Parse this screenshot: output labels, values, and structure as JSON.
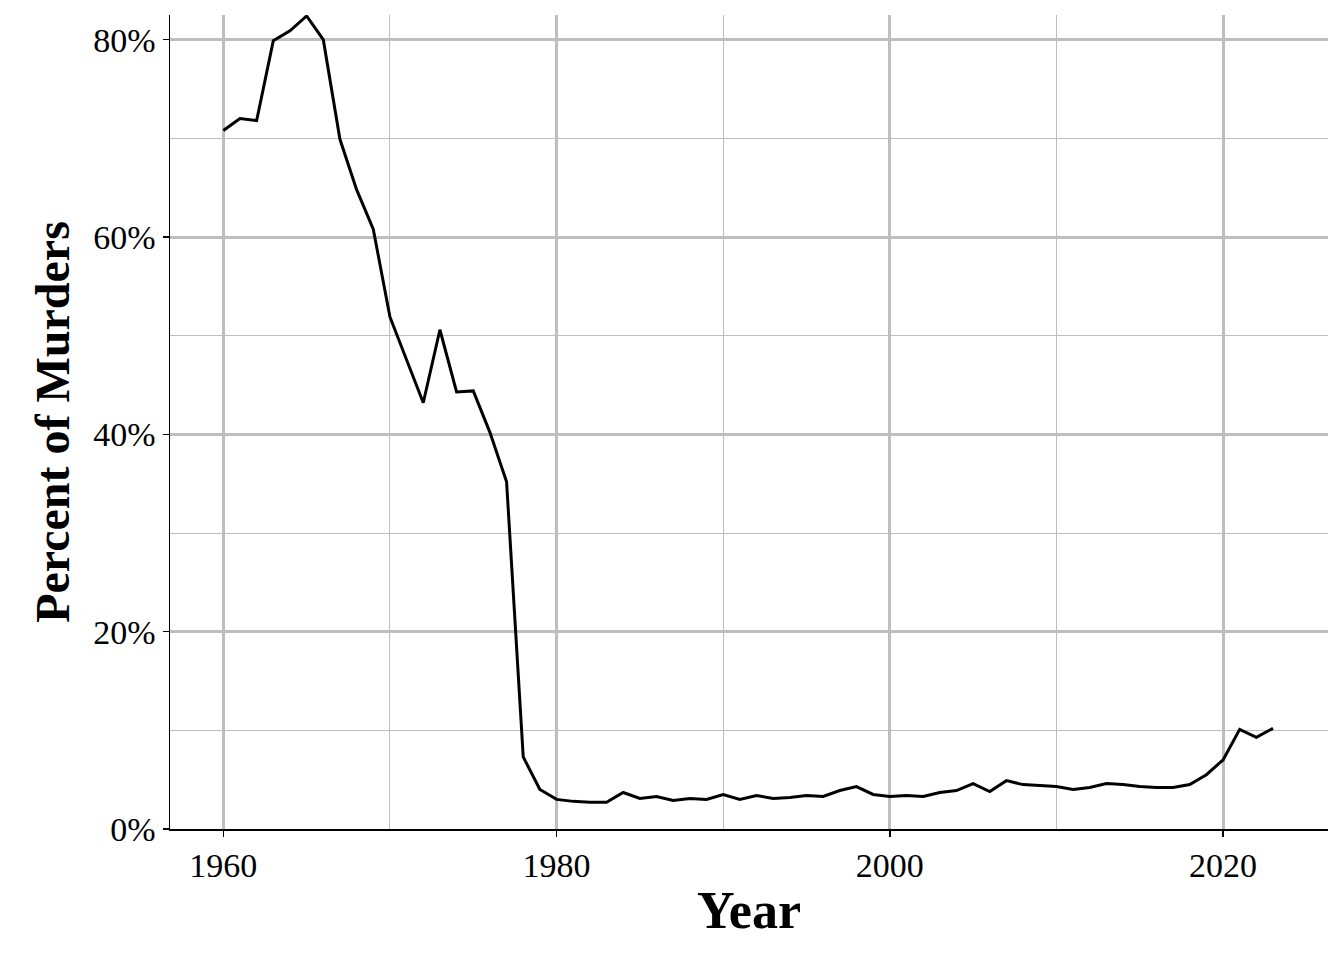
{
  "chart_data": {
    "type": "line",
    "x_label": "Year",
    "y_label": "Percent of Murders",
    "x": [
      1960,
      1961,
      1962,
      1963,
      1964,
      1965,
      1966,
      1967,
      1968,
      1969,
      1970,
      1971,
      1972,
      1973,
      1974,
      1975,
      1976,
      1977,
      1978,
      1979,
      1980,
      1981,
      1982,
      1983,
      1984,
      1985,
      1986,
      1987,
      1988,
      1989,
      1990,
      1991,
      1992,
      1993,
      1994,
      1995,
      1996,
      1997,
      1998,
      1999,
      2000,
      2001,
      2002,
      2003,
      2004,
      2005,
      2006,
      2007,
      2008,
      2009,
      2010,
      2011,
      2012,
      2013,
      2014,
      2015,
      2016,
      2017,
      2018,
      2019,
      2020,
      2021,
      2022,
      2023
    ],
    "values": [
      70.8,
      72.0,
      71.8,
      79.9,
      80.9,
      82.4,
      80.0,
      69.9,
      64.8,
      60.8,
      51.9,
      47.6,
      43.2,
      50.6,
      44.3,
      44.4,
      40.2,
      35.2,
      7.3,
      4.0,
      3.0,
      2.8,
      2.7,
      2.7,
      3.7,
      3.1,
      3.3,
      2.9,
      3.1,
      3.0,
      3.5,
      3.0,
      3.4,
      3.1,
      3.2,
      3.4,
      3.3,
      3.9,
      4.3,
      3.5,
      3.3,
      3.4,
      3.3,
      3.7,
      3.9,
      4.6,
      3.8,
      4.9,
      4.5,
      4.4,
      4.3,
      4.0,
      4.2,
      4.6,
      4.5,
      4.3,
      4.2,
      4.2,
      4.5,
      5.5,
      7.0,
      10.1,
      9.3,
      10.2
    ],
    "color": "#000000",
    "xlim": [
      1956.8,
      2026.3
    ],
    "xticks": [
      1960,
      1980,
      2000,
      2020
    ],
    "ylim": [
      0,
      82.5
    ],
    "yticks": [
      {
        "value": 0,
        "label": "0%"
      },
      {
        "value": 20,
        "label": "20%"
      },
      {
        "value": 40,
        "label": "40%"
      },
      {
        "value": 60,
        "label": "60%"
      },
      {
        "value": 80,
        "label": "80%"
      }
    ],
    "grid": true
  }
}
